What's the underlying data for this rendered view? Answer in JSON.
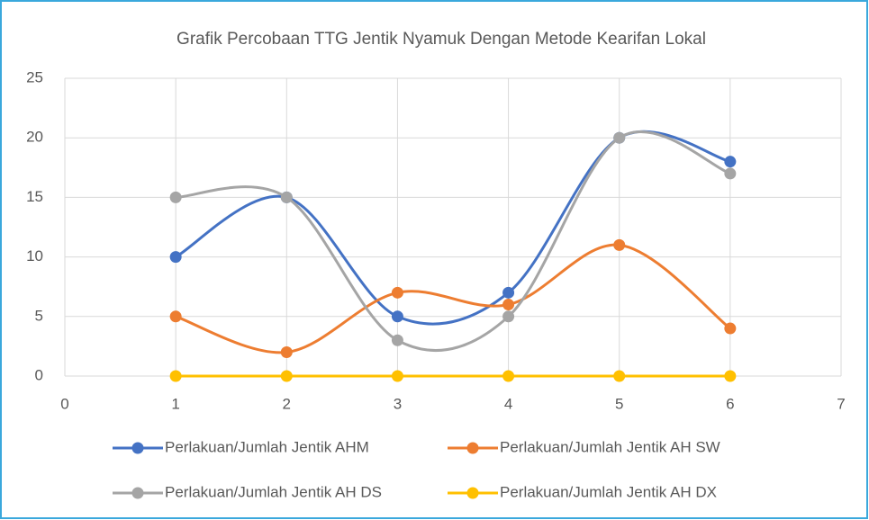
{
  "chart_data": {
    "type": "line",
    "title": "Grafik Percobaan TTG Jentik Nyamuk Dengan Metode Kearifan Lokal",
    "x": [
      1,
      2,
      3,
      4,
      5,
      6
    ],
    "series": [
      {
        "name": "Perlakuan/Jumlah Jentik AHM",
        "color": "#4472c4",
        "values": [
          10,
          15,
          5,
          7,
          20,
          18
        ]
      },
      {
        "name": "Perlakuan/Jumlah Jentik AH SW",
        "color": "#ed7d31",
        "values": [
          5,
          2,
          7,
          6,
          11,
          4
        ]
      },
      {
        "name": "Perlakuan/Jumlah Jentik AH DS",
        "color": "#a5a5a5",
        "values": [
          15,
          15,
          3,
          5,
          20,
          17
        ]
      },
      {
        "name": "Perlakuan/Jumlah Jentik AH DX",
        "color": "#ffc000",
        "values": [
          0,
          0,
          0,
          0,
          0,
          0
        ]
      }
    ],
    "xlim": [
      0,
      7
    ],
    "xticks": [
      0,
      1,
      2,
      3,
      4,
      5,
      6,
      7
    ],
    "ylim": [
      0,
      25
    ],
    "yticks": [
      0,
      5,
      10,
      15,
      20,
      25
    ],
    "grid": true,
    "smooth": true,
    "markers": true,
    "legend": "bottom"
  }
}
